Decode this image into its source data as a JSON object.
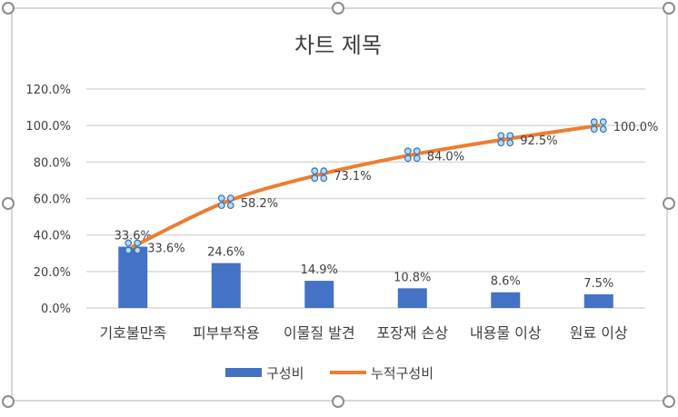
{
  "chart_data": {
    "type": "bar+line",
    "title": "차트 제목",
    "categories": [
      "기호불만족",
      "피부부작용",
      "이물질 발견",
      "포장재 손상",
      "내용물 이상",
      "원료 이상"
    ],
    "series": [
      {
        "name": "구성비",
        "type": "bar",
        "values": [
          33.6,
          24.6,
          14.9,
          10.8,
          8.6,
          7.5
        ],
        "labels": [
          "33.6%",
          "24.6%",
          "14.9%",
          "10.8%",
          "8.6%",
          "7.5%"
        ],
        "color": "#4472C4"
      },
      {
        "name": "누적구성비",
        "type": "line",
        "values": [
          33.6,
          58.2,
          73.1,
          84.0,
          92.5,
          100.0
        ],
        "labels": [
          "33.6%",
          "58.2%",
          "73.1%",
          "84.0%",
          "92.5%",
          "100.0%"
        ],
        "color": "#ED7D31"
      }
    ],
    "ylim": [
      0,
      120
    ],
    "yticks": [
      "0.0%",
      "20.0%",
      "40.0%",
      "60.0%",
      "80.0%",
      "100.0%",
      "120.0%"
    ],
    "grid": true,
    "legend": "bottom",
    "line_series_selected": true
  }
}
